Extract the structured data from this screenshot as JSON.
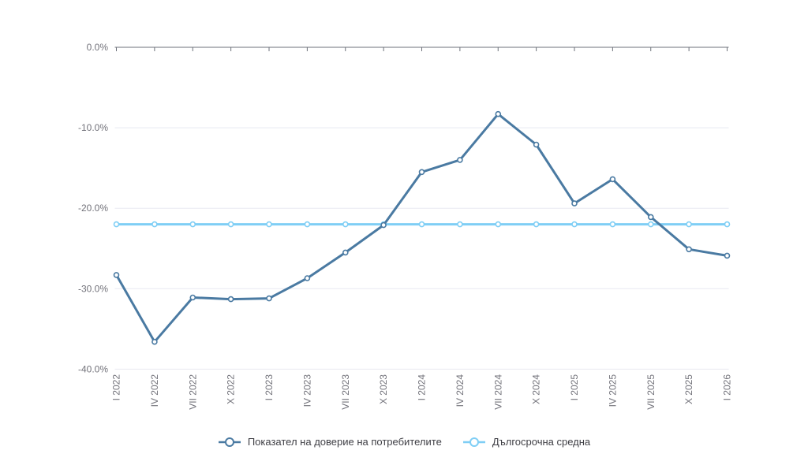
{
  "chart_data": {
    "type": "line",
    "title": "",
    "categories": [
      "I 2022",
      "IV 2022",
      "VII 2022",
      "X 2022",
      "I 2023",
      "IV 2023",
      "VII 2023",
      "X 2023",
      "I 2024",
      "IV 2024",
      "VII 2024",
      "X 2024",
      "I 2025",
      "IV 2025",
      "VII 2025",
      "X 2025",
      "I 2026"
    ],
    "series": [
      {
        "name": "Показател на доверие на потребителите",
        "color": "#4a7aa2",
        "values": [
          -28.3,
          -36.6,
          -31.1,
          -31.3,
          -31.2,
          -28.7,
          -25.5,
          -22.1,
          -15.5,
          -14.0,
          -8.3,
          -12.1,
          -19.4,
          -16.4,
          -21.1,
          -25.1,
          -25.9
        ]
      },
      {
        "name": "Дългосрочна средна",
        "color": "#7fcef5",
        "constant_value": -22.0,
        "values": [
          -22.0,
          -22.0,
          -22.0,
          -22.0,
          -22.0,
          -22.0,
          -22.0,
          -22.0,
          -22.0,
          -22.0,
          -22.0,
          -22.0,
          -22.0,
          -22.0,
          -22.0,
          -22.0,
          -22.0
        ]
      }
    ],
    "y_axis": {
      "min": -40,
      "max": 0,
      "ticks": [
        0,
        -10,
        -20,
        -30,
        -40
      ],
      "labels": [
        "0.0%",
        "-10.0%",
        "-20.0%",
        "-30.0%",
        "-40.0%"
      ]
    },
    "x_axis": {
      "label_rotation": -90,
      "axis_position": "top"
    },
    "grid": true,
    "legend_position": "bottom"
  },
  "colors": {
    "series_main": "#4a7aa2",
    "series_average": "#7fcef5",
    "gridline": "#e8e9f1",
    "axis": "#6e727b",
    "tick_label": "#72727a",
    "legend_text": "#3e3e44",
    "background": "#ffffff"
  }
}
